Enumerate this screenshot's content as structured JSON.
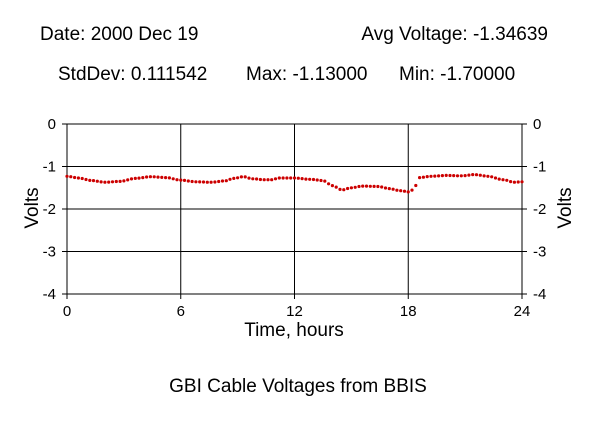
{
  "header": {
    "date": "Date: 2000 Dec 19",
    "avg": "Avg Voltage: -1.34639",
    "stddev": "StdDev: 0.111542",
    "max": "Max: -1.13000",
    "min": "Min: -1.70000"
  },
  "footer": {
    "caption": "GBI Cable Voltages from BBIS"
  },
  "chart_data": {
    "type": "scatter",
    "title": "",
    "xlabel": "Time, hours",
    "ylabel": "Volts",
    "xlim": [
      0,
      24
    ],
    "ylim": [
      -4,
      0
    ],
    "xticks": [
      0,
      6,
      12,
      18,
      24
    ],
    "yticks": [
      0,
      -1,
      -2,
      -3,
      -4
    ],
    "grid": true,
    "marker_color": "#cc0000",
    "anchors": [
      [
        0,
        -1.23
      ],
      [
        0.6,
        -1.27
      ],
      [
        1.3,
        -1.33
      ],
      [
        2,
        -1.37
      ],
      [
        2.8,
        -1.35
      ],
      [
        3.6,
        -1.28
      ],
      [
        4.4,
        -1.24
      ],
      [
        5.2,
        -1.26
      ],
      [
        6,
        -1.32
      ],
      [
        6.8,
        -1.36
      ],
      [
        7.6,
        -1.37
      ],
      [
        8.3,
        -1.34
      ],
      [
        8.8,
        -1.28
      ],
      [
        9.3,
        -1.24
      ],
      [
        9.8,
        -1.29
      ],
      [
        10.4,
        -1.31
      ],
      [
        10.8,
        -1.31
      ],
      [
        11.2,
        -1.27
      ],
      [
        12,
        -1.27
      ],
      [
        12.8,
        -1.3
      ],
      [
        13.5,
        -1.33
      ],
      [
        14,
        -1.45
      ],
      [
        14.5,
        -1.55
      ],
      [
        15,
        -1.5
      ],
      [
        15.6,
        -1.46
      ],
      [
        16.4,
        -1.47
      ],
      [
        17,
        -1.52
      ],
      [
        17.6,
        -1.57
      ],
      [
        18.1,
        -1.6
      ],
      [
        18.35,
        -1.47
      ],
      [
        18.6,
        -1.26
      ],
      [
        19.2,
        -1.23
      ],
      [
        20,
        -1.21
      ],
      [
        20.8,
        -1.22
      ],
      [
        21.5,
        -1.19
      ],
      [
        22.2,
        -1.23
      ],
      [
        23,
        -1.31
      ],
      [
        23.6,
        -1.37
      ],
      [
        24,
        -1.36
      ]
    ],
    "sample_interval_hours": 0.2
  }
}
